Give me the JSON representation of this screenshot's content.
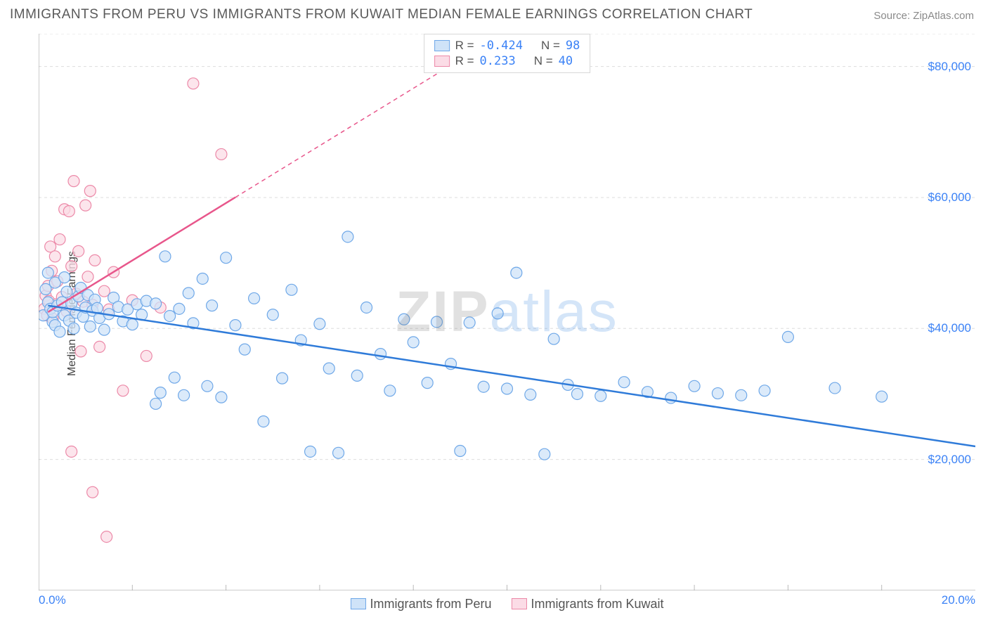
{
  "title": "IMMIGRANTS FROM PERU VS IMMIGRANTS FROM KUWAIT MEDIAN FEMALE EARNINGS CORRELATION CHART",
  "source_label": "Source: ",
  "source_name": "ZipAtlas.com",
  "ylabel": "Median Female Earnings",
  "watermark": {
    "part1": "ZIP",
    "part2": "atlas"
  },
  "chart": {
    "type": "scatter",
    "background_color": "#ffffff",
    "border_color": "#999999",
    "grid_color": "#dddddd",
    "grid_dash": "4 4",
    "axis_tick_color": "#bbbbbb",
    "marker_radius": 8,
    "marker_stroke_width": 1.2,
    "line_width": 2.5,
    "xlim": [
      0,
      20
    ],
    "ylim": [
      0,
      85000
    ],
    "x_tick_major": [
      0,
      20
    ],
    "x_tick_minor_step": 2,
    "y_gridlines": [
      20000,
      40000,
      60000,
      80000
    ],
    "x_tick_labels": {
      "left": "0.0%",
      "right": "20.0%"
    },
    "y_tick_labels": {
      "20000": "$20,000",
      "40000": "$40,000",
      "60000": "$60,000",
      "80000": "$80,000"
    },
    "tick_label_color": "#3b82f6",
    "tick_label_fontsize": 17
  },
  "series_a": {
    "name": "Immigrants from Peru",
    "legend_label": "Immigrants from Peru",
    "marker_fill": "#cfe3f8",
    "marker_stroke": "#6fa8e8",
    "line_color": "#2f7bd9",
    "line_dash": "none",
    "R": "-0.424",
    "N": "98",
    "trend": {
      "x1": 0.2,
      "y1": 43500,
      "x2": 20.0,
      "y2": 22000
    },
    "points": [
      [
        0.1,
        42000
      ],
      [
        0.15,
        46000
      ],
      [
        0.2,
        48500
      ],
      [
        0.2,
        44000
      ],
      [
        0.25,
        43000
      ],
      [
        0.3,
        41000
      ],
      [
        0.3,
        42500
      ],
      [
        0.35,
        40500
      ],
      [
        0.35,
        47000
      ],
      [
        0.4,
        43500
      ],
      [
        0.45,
        39500
      ],
      [
        0.5,
        44000
      ],
      [
        0.55,
        42000
      ],
      [
        0.55,
        47800
      ],
      [
        0.6,
        45600
      ],
      [
        0.65,
        41200
      ],
      [
        0.7,
        43800
      ],
      [
        0.75,
        40000
      ],
      [
        0.8,
        42400
      ],
      [
        0.85,
        44900
      ],
      [
        0.9,
        46200
      ],
      [
        0.95,
        41800
      ],
      [
        1.0,
        43200
      ],
      [
        1.05,
        45100
      ],
      [
        1.1,
        40300
      ],
      [
        1.15,
        42700
      ],
      [
        1.2,
        44400
      ],
      [
        1.25,
        43100
      ],
      [
        1.3,
        41600
      ],
      [
        1.4,
        39800
      ],
      [
        1.5,
        42200
      ],
      [
        1.6,
        44700
      ],
      [
        1.7,
        43300
      ],
      [
        1.8,
        41100
      ],
      [
        1.9,
        42900
      ],
      [
        2.0,
        40600
      ],
      [
        2.1,
        43700
      ],
      [
        2.2,
        42100
      ],
      [
        2.3,
        44200
      ],
      [
        2.5,
        43800
      ],
      [
        2.5,
        28500
      ],
      [
        2.6,
        30200
      ],
      [
        2.7,
        51000
      ],
      [
        2.8,
        41900
      ],
      [
        2.9,
        32500
      ],
      [
        3.0,
        43000
      ],
      [
        3.1,
        29800
      ],
      [
        3.2,
        45400
      ],
      [
        3.3,
        40800
      ],
      [
        3.5,
        47600
      ],
      [
        3.6,
        31200
      ],
      [
        3.7,
        43500
      ],
      [
        3.9,
        29500
      ],
      [
        4.0,
        50800
      ],
      [
        4.2,
        40500
      ],
      [
        4.4,
        36800
      ],
      [
        4.6,
        44600
      ],
      [
        4.8,
        25800
      ],
      [
        5.0,
        42100
      ],
      [
        5.2,
        32400
      ],
      [
        5.4,
        45900
      ],
      [
        5.6,
        38200
      ],
      [
        5.8,
        21200
      ],
      [
        6.0,
        40700
      ],
      [
        6.2,
        33900
      ],
      [
        6.4,
        21000
      ],
      [
        6.6,
        54000
      ],
      [
        6.8,
        32800
      ],
      [
        7.0,
        43200
      ],
      [
        7.3,
        36100
      ],
      [
        7.5,
        30500
      ],
      [
        7.8,
        41400
      ],
      [
        8.0,
        37900
      ],
      [
        8.3,
        31700
      ],
      [
        8.5,
        41000
      ],
      [
        8.8,
        34600
      ],
      [
        9.0,
        21300
      ],
      [
        9.2,
        40900
      ],
      [
        9.5,
        31100
      ],
      [
        9.8,
        42300
      ],
      [
        10.0,
        30800
      ],
      [
        10.2,
        48500
      ],
      [
        10.5,
        29900
      ],
      [
        10.8,
        20800
      ],
      [
        11.0,
        38400
      ],
      [
        11.3,
        31400
      ],
      [
        11.5,
        30000
      ],
      [
        12.0,
        29700
      ],
      [
        12.5,
        31800
      ],
      [
        13.0,
        30300
      ],
      [
        13.5,
        29400
      ],
      [
        14.0,
        31200
      ],
      [
        14.5,
        30100
      ],
      [
        15.0,
        29800
      ],
      [
        15.5,
        30500
      ],
      [
        16.0,
        38700
      ],
      [
        17.0,
        30900
      ],
      [
        18.0,
        29600
      ]
    ]
  },
  "series_b": {
    "name": "Immigrants from Kuwait",
    "legend_label": "Immigrants from Kuwait",
    "marker_fill": "#fbdce6",
    "marker_stroke": "#ec89a8",
    "line_color": "#e8568b",
    "line_dash": "6 5",
    "line_solid_until_x": 4.2,
    "line_end_x": 11.5,
    "R": "0.233",
    "N": "40",
    "trend": {
      "x1": 0.2,
      "y1": 42500,
      "x2": 11.5,
      "y2": 92000
    },
    "points": [
      [
        0.12,
        43000
      ],
      [
        0.15,
        45000
      ],
      [
        0.18,
        42000
      ],
      [
        0.2,
        46500
      ],
      [
        0.22,
        44200
      ],
      [
        0.25,
        52500
      ],
      [
        0.28,
        48800
      ],
      [
        0.3,
        41500
      ],
      [
        0.35,
        51000
      ],
      [
        0.38,
        43700
      ],
      [
        0.4,
        47200
      ],
      [
        0.45,
        53600
      ],
      [
        0.5,
        44800
      ],
      [
        0.55,
        58200
      ],
      [
        0.6,
        42600
      ],
      [
        0.65,
        57900
      ],
      [
        0.7,
        49500
      ],
      [
        0.75,
        62500
      ],
      [
        0.8,
        45300
      ],
      [
        0.85,
        51800
      ],
      [
        0.9,
        36500
      ],
      [
        0.95,
        44100
      ],
      [
        1.0,
        58800
      ],
      [
        1.05,
        47900
      ],
      [
        1.1,
        61000
      ],
      [
        1.15,
        43600
      ],
      [
        1.2,
        50400
      ],
      [
        1.3,
        37200
      ],
      [
        1.4,
        45700
      ],
      [
        1.5,
        42900
      ],
      [
        1.6,
        48600
      ],
      [
        1.8,
        30500
      ],
      [
        2.0,
        44300
      ],
      [
        2.3,
        35800
      ],
      [
        2.6,
        43200
      ],
      [
        3.3,
        77400
      ],
      [
        3.9,
        66600
      ],
      [
        0.7,
        21200
      ],
      [
        1.15,
        15000
      ],
      [
        1.45,
        8200
      ]
    ]
  },
  "legend_top": {
    "R_label": "R =",
    "N_label": "N =",
    "value_color": "#3b82f6"
  }
}
